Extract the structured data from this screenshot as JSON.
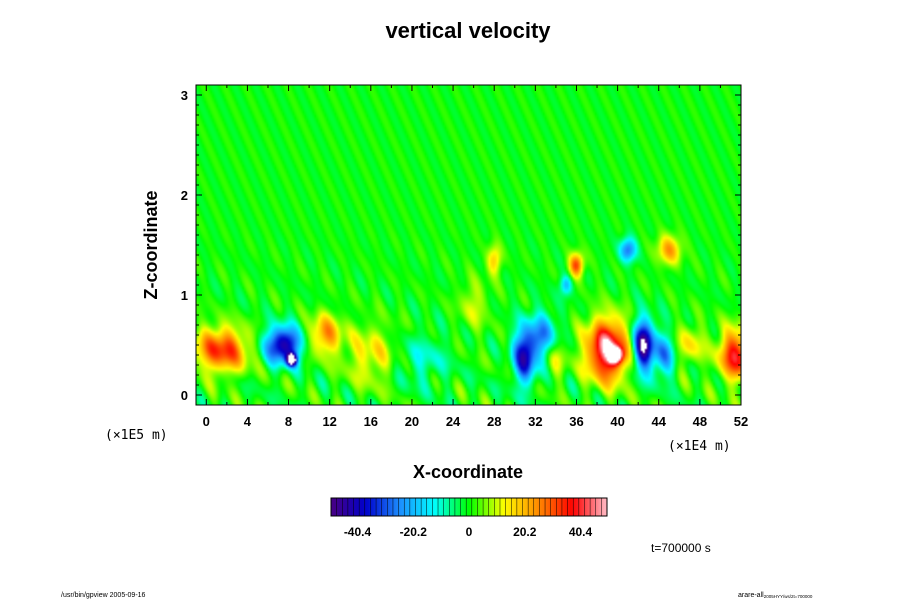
{
  "chart_data": {
    "type": "heatmap",
    "title": "vertical velocity",
    "xlabel": "X-coordinate",
    "ylabel": "Z-coordinate",
    "x_ticks": [
      "0",
      "4",
      "8",
      "12",
      "16",
      "20",
      "24",
      "28",
      "32",
      "36",
      "40",
      "44",
      "48",
      "52"
    ],
    "y_ticks": [
      "0",
      "1",
      "2",
      "3"
    ],
    "xlim": [
      -1,
      52
    ],
    "ylim": [
      -0.1,
      3.1
    ],
    "x_scale_label": "(×1E4 m)",
    "y_scale_label": "(×1E5 m)",
    "colorbar": {
      "min": -50,
      "max": 50,
      "tick_values": [
        -40.4,
        -20.2,
        0,
        20.2,
        40.4
      ],
      "tick_labels": [
        "-40.4",
        "-20.2",
        "0",
        "20.2",
        "40.4"
      ],
      "colors": [
        "#4b0082",
        "#0000cd",
        "#1e90ff",
        "#00ffff",
        "#00ff00",
        "#ffff00",
        "#ff8c00",
        "#ff0000",
        "#ffc0cb"
      ]
    },
    "features": [
      {
        "x": 1.5,
        "z": 0.45,
        "value": 34,
        "sx": 2.6,
        "sz": 0.22
      },
      {
        "x": 7.5,
        "z": 0.5,
        "value": -45,
        "sx": 1.8,
        "sz": 0.18
      },
      {
        "x": 8.3,
        "z": 0.35,
        "value": -52,
        "sx": 0.5,
        "sz": 0.06
      },
      {
        "x": 11.5,
        "z": 0.6,
        "value": 24,
        "sx": 1.6,
        "sz": 0.2
      },
      {
        "x": 16.0,
        "z": 0.4,
        "value": 14,
        "sx": 2.5,
        "sz": 0.3
      },
      {
        "x": 21.0,
        "z": 0.35,
        "value": -10,
        "sx": 2.5,
        "sz": 0.25
      },
      {
        "x": 26.0,
        "z": 0.9,
        "value": 10,
        "sx": 1.4,
        "sz": 0.25
      },
      {
        "x": 28.0,
        "z": 1.35,
        "value": 18,
        "sx": 0.7,
        "sz": 0.15
      },
      {
        "x": 31.0,
        "z": 0.4,
        "value": -42,
        "sx": 1.1,
        "sz": 0.28
      },
      {
        "x": 32.8,
        "z": 0.6,
        "value": -24,
        "sx": 1.2,
        "sz": 0.22
      },
      {
        "x": 34.0,
        "z": 0.35,
        "value": 10,
        "sx": 1.0,
        "sz": 0.2
      },
      {
        "x": 36.0,
        "z": 1.3,
        "value": 32,
        "sx": 0.7,
        "sz": 0.12
      },
      {
        "x": 35.0,
        "z": 1.1,
        "value": -20,
        "sx": 0.6,
        "sz": 0.1
      },
      {
        "x": 39.0,
        "z": 0.45,
        "value": 50,
        "sx": 2.0,
        "sz": 0.3
      },
      {
        "x": 39.8,
        "z": 0.4,
        "value": 54,
        "sx": 0.6,
        "sz": 0.07
      },
      {
        "x": 42.5,
        "z": 0.5,
        "value": -52,
        "sx": 1.0,
        "sz": 0.25
      },
      {
        "x": 44.5,
        "z": 0.4,
        "value": -24,
        "sx": 1.1,
        "sz": 0.22
      },
      {
        "x": 41.0,
        "z": 1.45,
        "value": -28,
        "sx": 0.8,
        "sz": 0.12
      },
      {
        "x": 45.0,
        "z": 1.45,
        "value": 22,
        "sx": 1.2,
        "sz": 0.15
      },
      {
        "x": 47.0,
        "z": 0.5,
        "value": 14,
        "sx": 1.5,
        "sz": 0.2
      },
      {
        "x": 51.5,
        "z": 0.4,
        "value": 38,
        "sx": 1.6,
        "sz": 0.25
      }
    ]
  },
  "annotations": {
    "time_label": "t=700000 s",
    "footer_left": "/usr/bin/gpview 2005-09-16",
    "footer_right": "arare-all",
    "footer_right_small": "2005HYY/ws/2t=700000"
  }
}
